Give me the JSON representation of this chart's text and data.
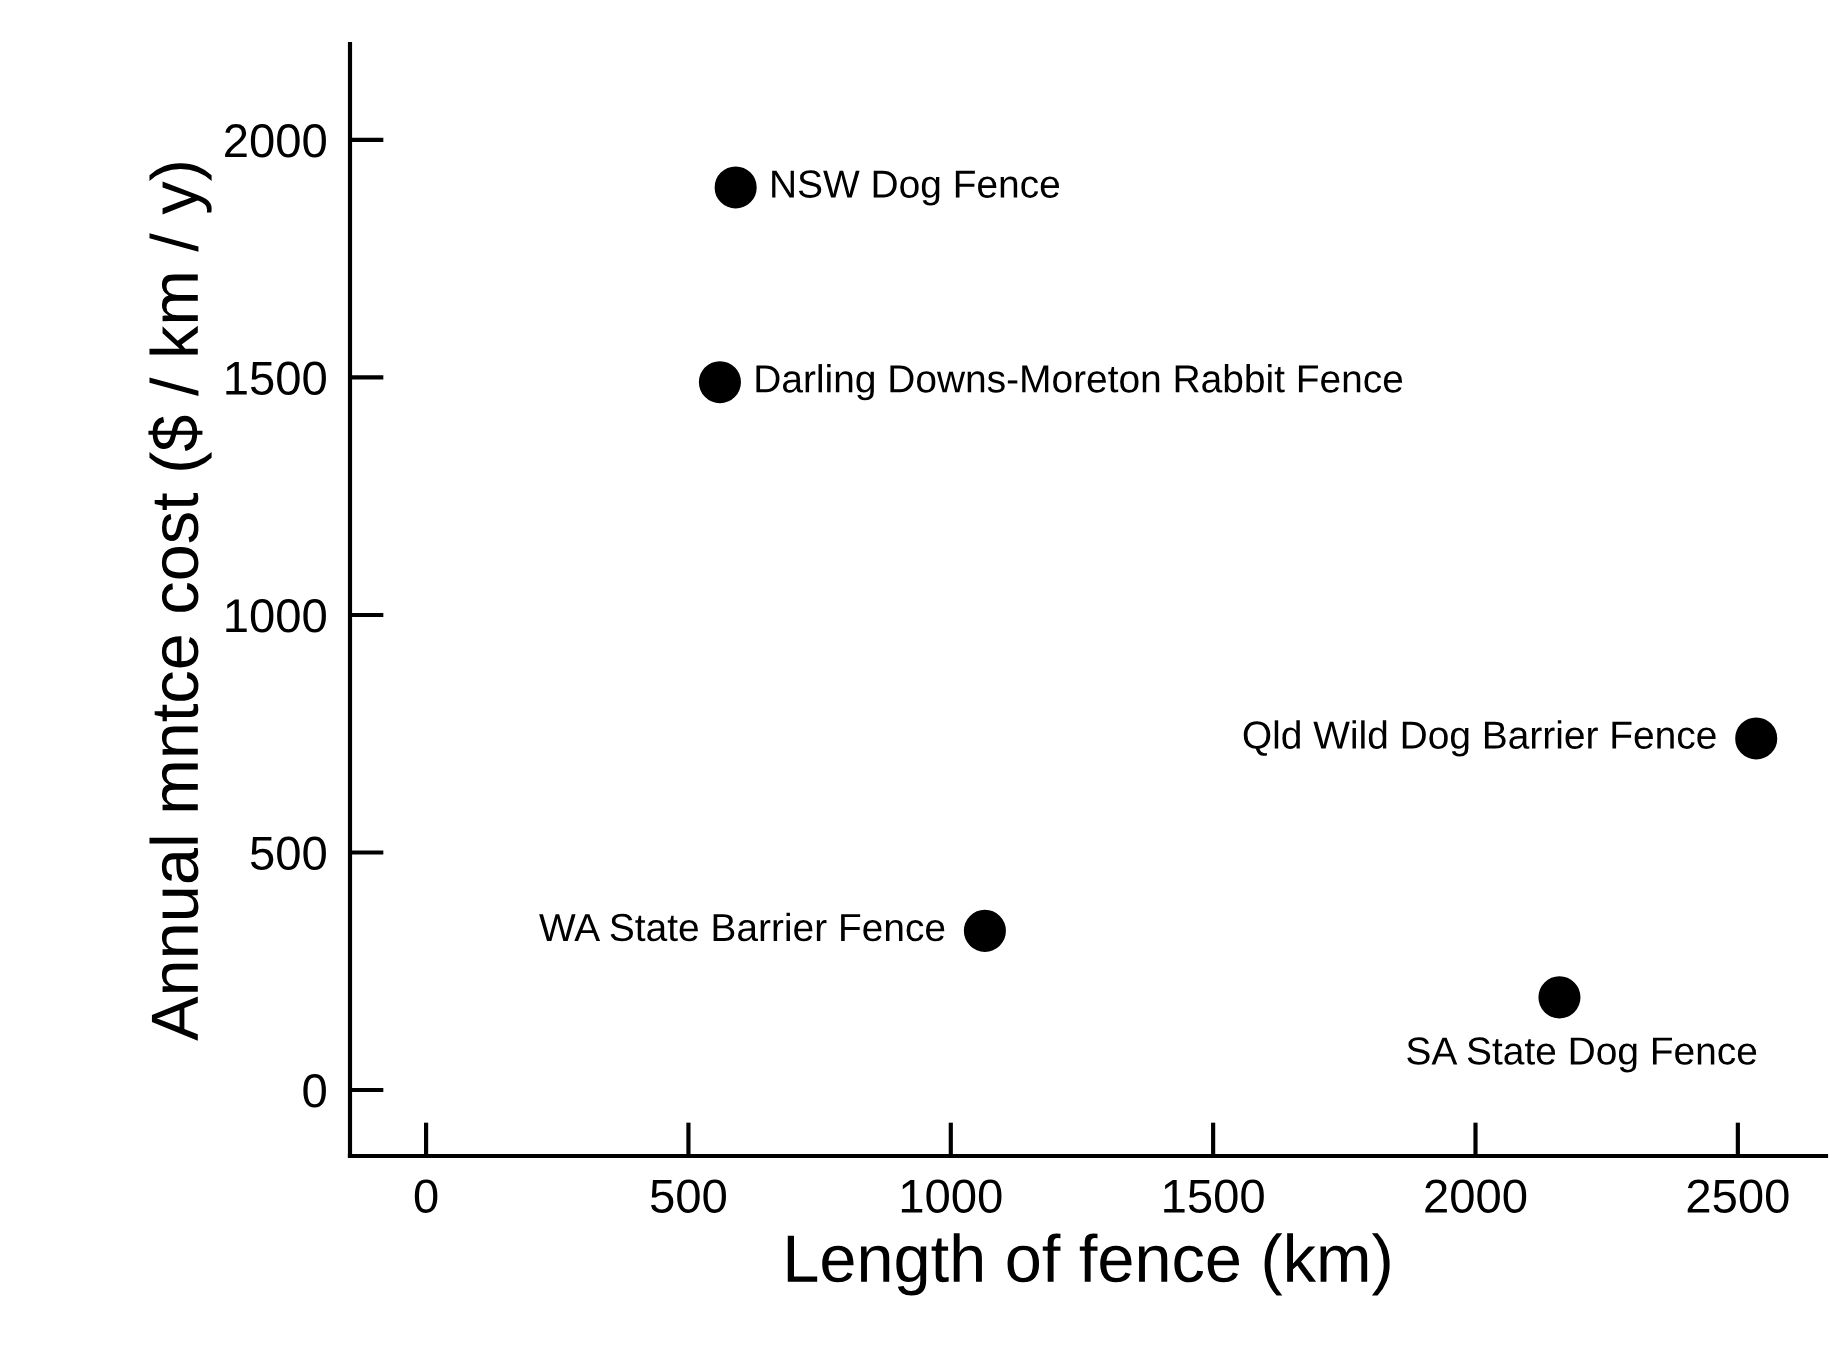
{
  "chart_data": {
    "type": "scatter",
    "xlabel": "Length of fence (km)",
    "ylabel": "Annual mntce cost ($ / km / y)",
    "x": [
      590,
      560,
      2535,
      1065,
      2160
    ],
    "values": [
      1900,
      1490,
      740,
      335,
      195
    ],
    "color": "#000000",
    "marker": "circle",
    "xlim": [
      -145,
      2668
    ],
    "ylim": [
      -139,
      2202
    ],
    "xticks": [
      0,
      500,
      1000,
      1500,
      2000,
      2500
    ],
    "yticks": [
      0,
      500,
      1000,
      1500,
      2000
    ],
    "grid": false,
    "annotations": [
      {
        "text": "NSW Dog Fence",
        "x": 590,
        "y": 1900
      },
      {
        "text": "Darling Downs-Moreton Rabbit Fence",
        "x": 560,
        "y": 1490
      },
      {
        "text": "Qld Wild Dog Barrier Fence",
        "x": 2535,
        "y": 740
      },
      {
        "text": "WA State Barrier Fence",
        "x": 1065,
        "y": 335
      },
      {
        "text": "SA State Dog Fence",
        "x": 2160,
        "y": 195
      }
    ]
  }
}
